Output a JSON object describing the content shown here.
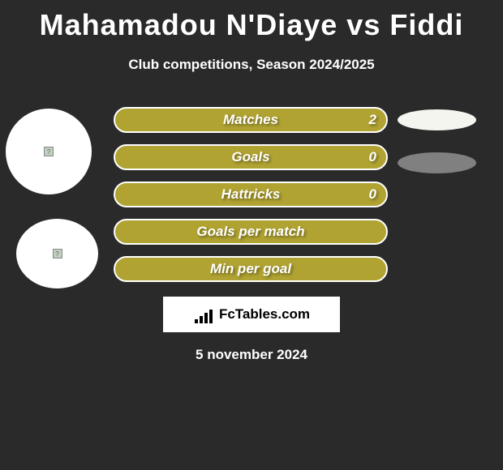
{
  "title": "Mahamadou N'Diaye vs Fiddi",
  "subtitle": "Club competitions, Season 2024/2025",
  "date": "5 november 2024",
  "logo_text": "FcTables.com",
  "colors": {
    "background": "#2a2a2a",
    "bar_fill": "#b0a332",
    "bar_border": "#ffffff",
    "text": "#ffffff",
    "ellipse_light": "#f5f5f0",
    "ellipse_gray": "#808080",
    "avatar_bg": "#ffffff"
  },
  "stats": [
    {
      "label": "Matches",
      "value": "2",
      "has_value": true
    },
    {
      "label": "Goals",
      "value": "0",
      "has_value": true
    },
    {
      "label": "Hattricks",
      "value": "0",
      "has_value": true
    },
    {
      "label": "Goals per match",
      "value": "",
      "has_value": false
    },
    {
      "label": "Min per goal",
      "value": "",
      "has_value": false
    }
  ]
}
